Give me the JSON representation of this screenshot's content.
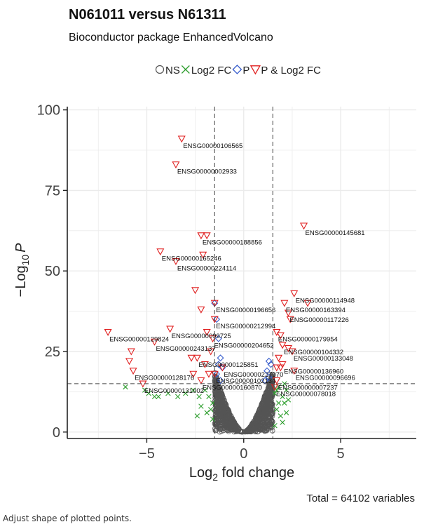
{
  "caption": "Adjust shape of plotted points.",
  "colors": {
    "ns": "#555555",
    "log2fc": "#2e9e2e",
    "p": "#3a5fcd",
    "both": "#e02020",
    "grid": "#ebebeb",
    "axis": "#222222"
  },
  "chart_data": {
    "type": "scatter",
    "title": "N061011 versus N61311",
    "subtitle": "Bioconductor package EnhancedVolcano",
    "xlabel_main": "Log",
    "xlabel_sub": "2",
    "xlabel_rest": " fold change",
    "ylabel_main": "−Log",
    "ylabel_sub": "10",
    "ylabel_rest": "P",
    "caption_total": "Total = 64102 variables",
    "xlim": [
      -9.1,
      8.9
    ],
    "ylim": [
      -2,
      101
    ],
    "x_ticks": [
      -5,
      0,
      5
    ],
    "y_ticks": [
      0,
      25,
      50,
      75,
      100
    ],
    "fc_cutoff": 1.5,
    "p_cutoff_y": 15,
    "legend_position": "top",
    "legend": [
      {
        "key": "ns",
        "label": "NS",
        "shape": "circle"
      },
      {
        "key": "log2fc",
        "label": "Log2 FC",
        "shape": "cross"
      },
      {
        "key": "p",
        "label": "P",
        "shape": "diamond"
      },
      {
        "key": "both",
        "label": "P & Log2 FC",
        "shape": "triangle"
      }
    ],
    "labeled_points": [
      {
        "x": -3.2,
        "y": 91,
        "label": "ENSG00000106565"
      },
      {
        "x": -3.5,
        "y": 83,
        "label": "ENSG00000002933"
      },
      {
        "x": 3.1,
        "y": 64,
        "label": "ENSG00000145681"
      },
      {
        "x": -2.2,
        "y": 61,
        "label": "ENSG00000188856"
      },
      {
        "x": -4.3,
        "y": 56,
        "label": "ENSG00000165246"
      },
      {
        "x": -3.5,
        "y": 53,
        "label": "ENSG00000224114"
      },
      {
        "x": -1.5,
        "y": 40,
        "label": "ENSG00000196656"
      },
      {
        "x": 2.6,
        "y": 43,
        "label": "ENSG00000114948"
      },
      {
        "x": 2.1,
        "y": 40,
        "label": "ENSG00000163394"
      },
      {
        "x": 2.3,
        "y": 37,
        "label": "ENSG00000117226"
      },
      {
        "x": -1.5,
        "y": 35,
        "label": "ENSG00000212994"
      },
      {
        "x": -3.8,
        "y": 32,
        "label": "ENSG00000099725"
      },
      {
        "x": -7.0,
        "y": 31,
        "label": "ENSG00000129824"
      },
      {
        "x": 1.7,
        "y": 31,
        "label": "ENSG00000179954"
      },
      {
        "x": -1.6,
        "y": 29,
        "label": "ENSG00000204652"
      },
      {
        "x": -4.6,
        "y": 28,
        "label": "ENSG00000243137"
      },
      {
        "x": 2.0,
        "y": 27,
        "label": "ENSG00000104332"
      },
      {
        "x": 2.5,
        "y": 25,
        "label": "ENSG00000133048"
      },
      {
        "x": -2.4,
        "y": 23,
        "label": "ENSG00000125851"
      },
      {
        "x": 2.0,
        "y": 21,
        "label": "ENSG00000136960"
      },
      {
        "x": -5.7,
        "y": 19,
        "label": "ENSG00000128176"
      },
      {
        "x": -1.1,
        "y": 20,
        "label": "ENSG00000227070"
      },
      {
        "x": 2.6,
        "y": 19,
        "label": "ENSG00000096696"
      },
      {
        "x": -1.5,
        "y": 18,
        "label": "ENSG00000102134"
      },
      {
        "x": -2.2,
        "y": 16,
        "label": "ENSG00000160870"
      },
      {
        "x": 1.7,
        "y": 16,
        "label": "ENSG00000007237"
      },
      {
        "x": -5.2,
        "y": 15,
        "label": "ENSG00000131002"
      },
      {
        "x": 1.6,
        "y": 14,
        "label": "ENSG00000078018"
      }
    ],
    "other_significant": [
      {
        "x": -5.9,
        "y": 22
      },
      {
        "x": -5.8,
        "y": 25
      },
      {
        "x": -2.2,
        "y": 38
      },
      {
        "x": -2.7,
        "y": 23
      },
      {
        "x": -1.8,
        "y": 18
      },
      {
        "x": -2.0,
        "y": 21
      },
      {
        "x": 1.8,
        "y": 23
      },
      {
        "x": 2.3,
        "y": 26
      },
      {
        "x": 1.7,
        "y": 20
      },
      {
        "x": -1.7,
        "y": 25
      },
      {
        "x": -2.5,
        "y": 44
      },
      {
        "x": 3.3,
        "y": 40
      },
      {
        "x": 1.9,
        "y": 30
      },
      {
        "x": -1.9,
        "y": 31
      },
      {
        "x": 2.4,
        "y": 35
      },
      {
        "x": -1.9,
        "y": 61
      },
      {
        "x": -2.1,
        "y": 55
      },
      {
        "x": 1.9,
        "y": 20
      },
      {
        "x": -2.6,
        "y": 18
      }
    ],
    "p_only": [
      {
        "x": -1.5,
        "y": 40
      },
      {
        "x": -1.4,
        "y": 35
      },
      {
        "x": -1.3,
        "y": 29
      },
      {
        "x": -1.2,
        "y": 23
      },
      {
        "x": -1.3,
        "y": 21
      },
      {
        "x": -1.1,
        "y": 20
      },
      {
        "x": -1.4,
        "y": 18
      },
      {
        "x": -1.2,
        "y": 16
      },
      {
        "x": 1.3,
        "y": 22
      },
      {
        "x": 1.4,
        "y": 21
      },
      {
        "x": 1.2,
        "y": 19
      },
      {
        "x": 1.3,
        "y": 17
      },
      {
        "x": 1.1,
        "y": 16
      }
    ],
    "fc_only": [
      {
        "x": -6.1,
        "y": 14
      },
      {
        "x": -5.1,
        "y": 13
      },
      {
        "x": -4.9,
        "y": 12
      },
      {
        "x": -4.4,
        "y": 11
      },
      {
        "x": -3.9,
        "y": 12
      },
      {
        "x": -3.4,
        "y": 11
      },
      {
        "x": -3.0,
        "y": 12
      },
      {
        "x": -2.6,
        "y": 13
      },
      {
        "x": -2.3,
        "y": 11
      },
      {
        "x": -2.0,
        "y": 13
      },
      {
        "x": -1.8,
        "y": 11
      },
      {
        "x": -1.6,
        "y": 9
      },
      {
        "x": -2.2,
        "y": 8
      },
      {
        "x": -1.9,
        "y": 6
      },
      {
        "x": -1.6,
        "y": 4
      },
      {
        "x": -2.4,
        "y": 5
      },
      {
        "x": -4.6,
        "y": 11
      },
      {
        "x": -1.7,
        "y": 7
      },
      {
        "x": 1.6,
        "y": 12
      },
      {
        "x": 1.8,
        "y": 14
      },
      {
        "x": 2.0,
        "y": 11
      },
      {
        "x": 2.1,
        "y": 9
      },
      {
        "x": 1.7,
        "y": 7
      },
      {
        "x": 1.9,
        "y": 5
      },
      {
        "x": 2.2,
        "y": 13
      },
      {
        "x": 2.3,
        "y": 10
      },
      {
        "x": 2.0,
        "y": 3
      },
      {
        "x": 1.6,
        "y": 2
      },
      {
        "x": 1.8,
        "y": 9
      },
      {
        "x": 2.2,
        "y": 6
      },
      {
        "x": 1.7,
        "y": 13
      },
      {
        "x": 2.1,
        "y": 15
      }
    ],
    "ns_cloud": {
      "count": 1200,
      "xmax": 1.5,
      "ymax": 19
    }
  }
}
